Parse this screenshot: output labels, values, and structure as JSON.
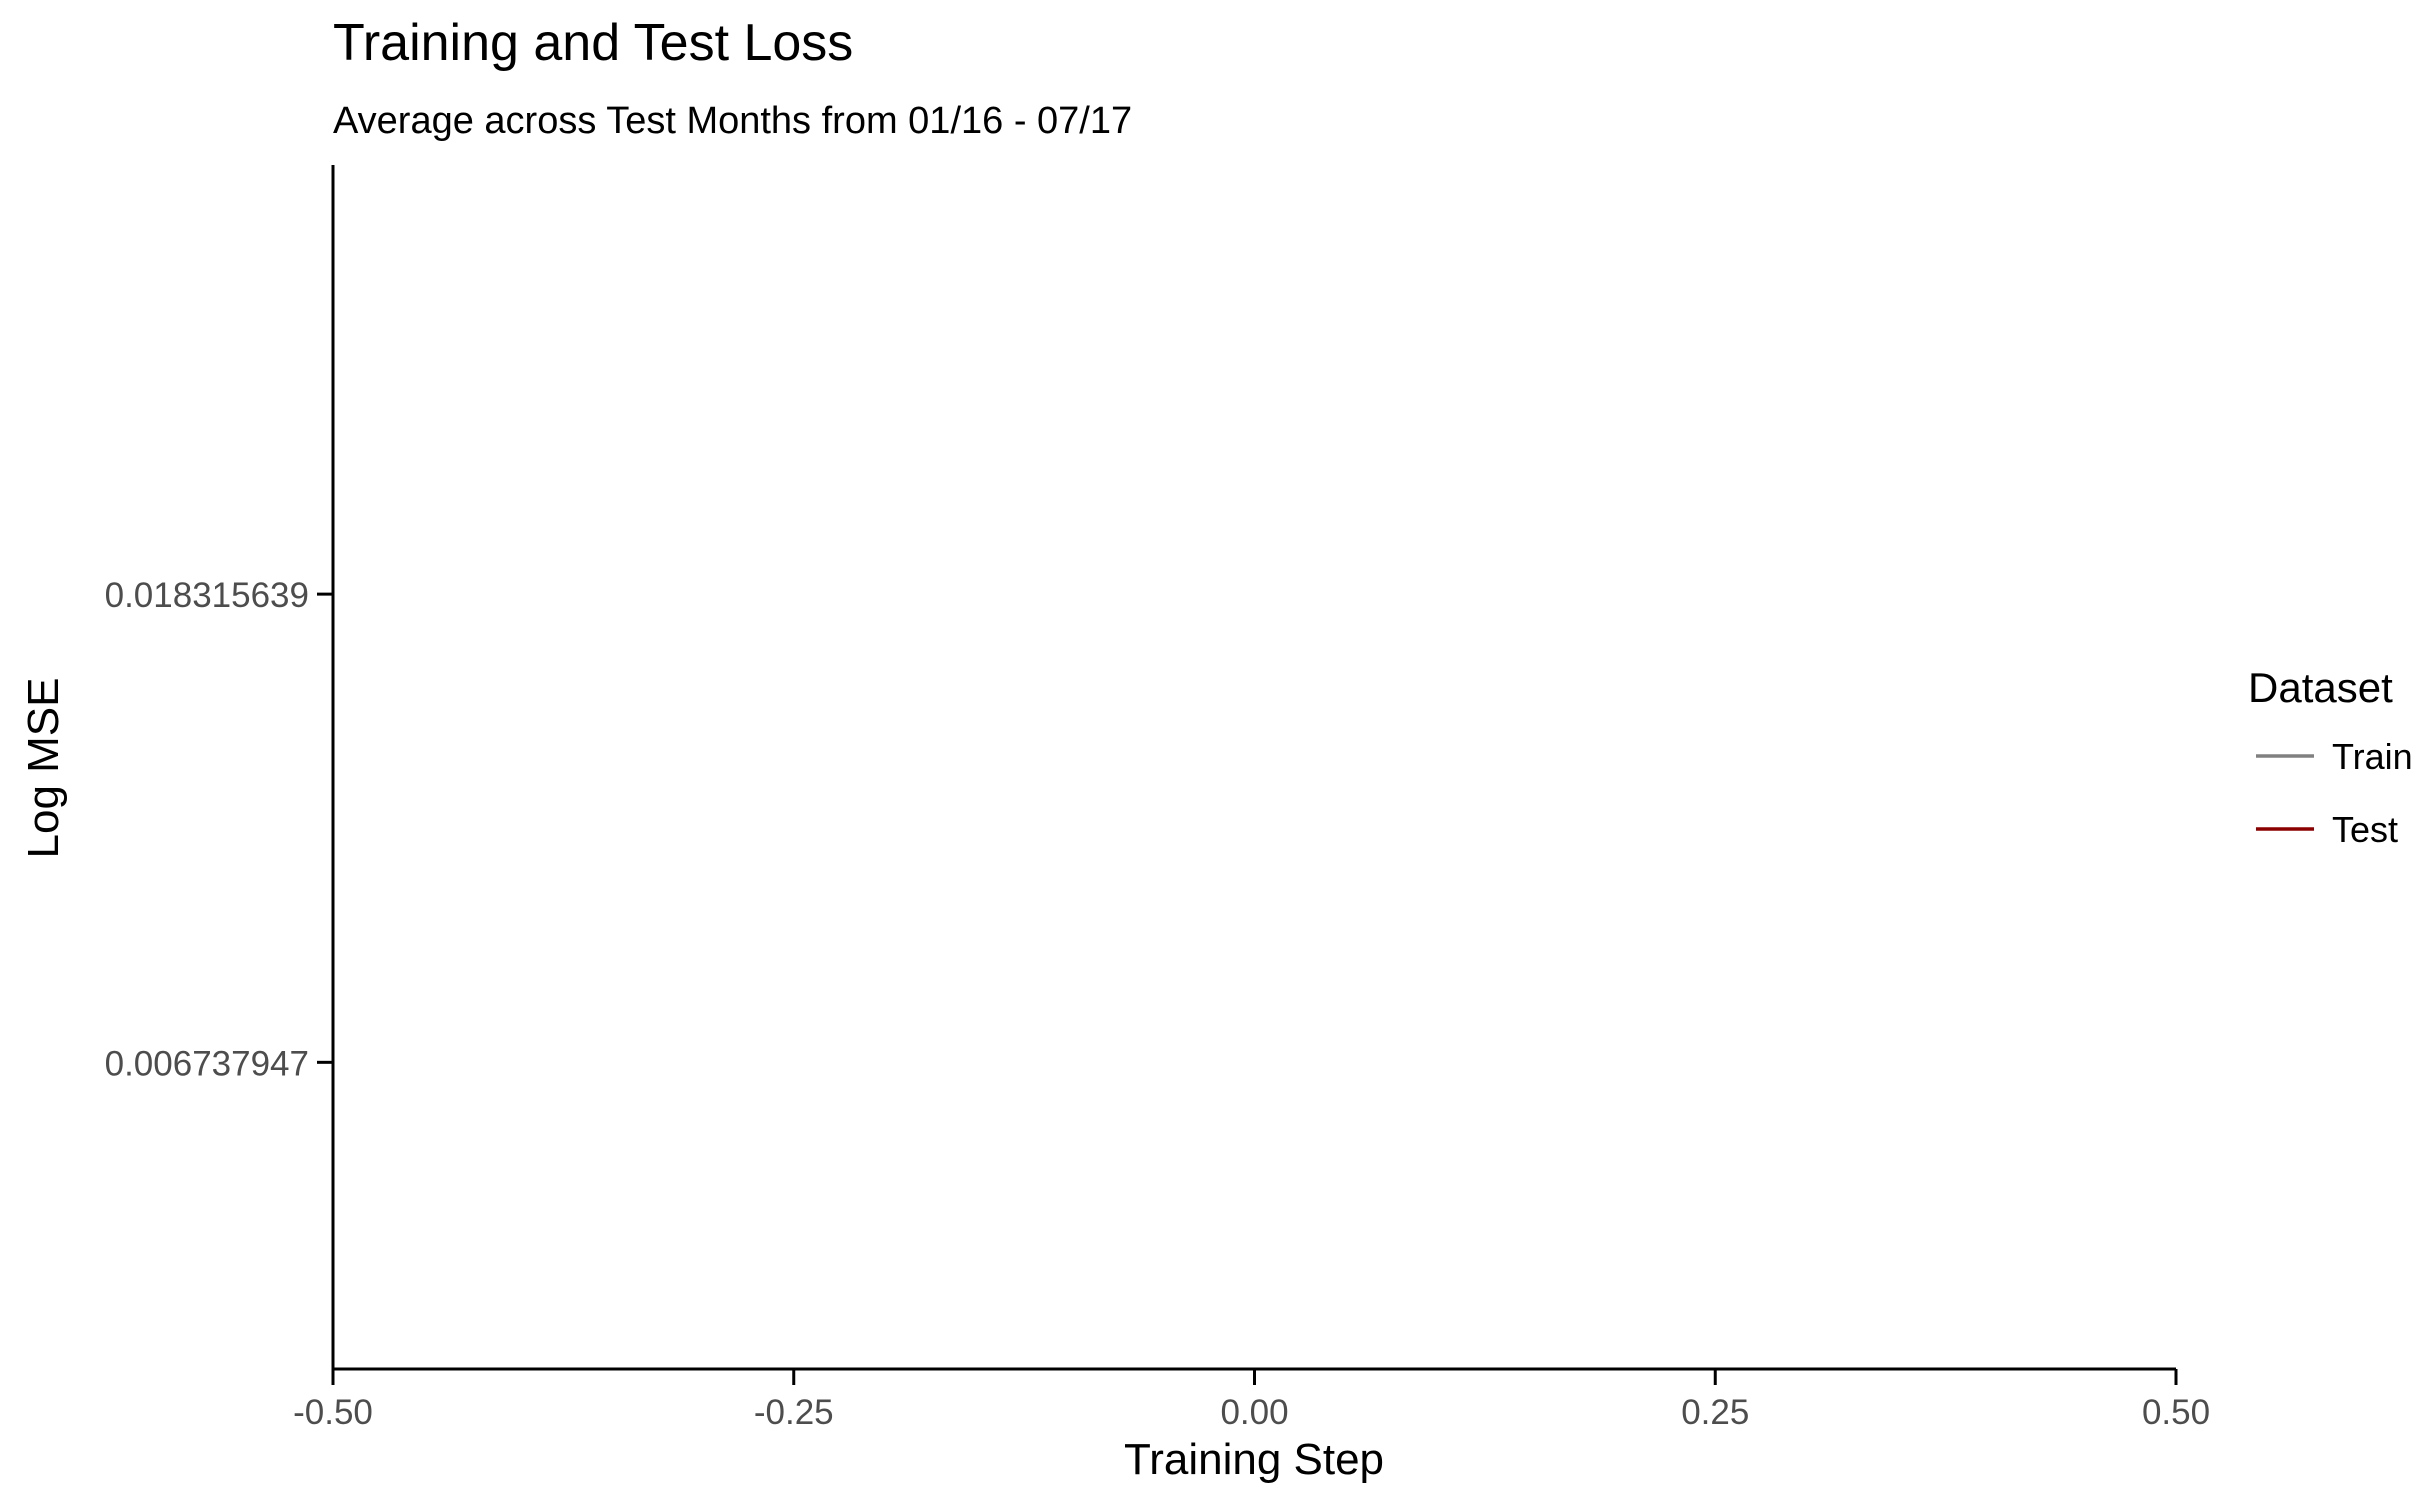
{
  "chart_data": {
    "type": "line",
    "title": "Training and Test Loss",
    "subtitle": "Average across Test Months from 01/16 - 07/17",
    "xlabel": "Training Step",
    "ylabel": "Log MSE",
    "xlim": [
      -0.5,
      0.5
    ],
    "x_ticks": [
      -0.5,
      -0.25,
      0.0,
      0.25,
      0.5
    ],
    "x_tick_labels": [
      "-0.50",
      "-0.25",
      "0.00",
      "0.25",
      "0.50"
    ],
    "y_scale": "log",
    "ylim": [
      0.0035,
      0.0458
    ],
    "y_ticks": [
      0.006737947,
      0.018315639
    ],
    "y_tick_labels": [
      "0.006737947",
      "0.018315639"
    ],
    "grid": false,
    "legend": {
      "title": "Dataset",
      "placement": "right"
    },
    "series": [
      {
        "name": "Train",
        "color": "#808080",
        "x": [],
        "y": []
      },
      {
        "name": "Test",
        "color": "#8B0000",
        "x": [],
        "y": []
      }
    ]
  }
}
